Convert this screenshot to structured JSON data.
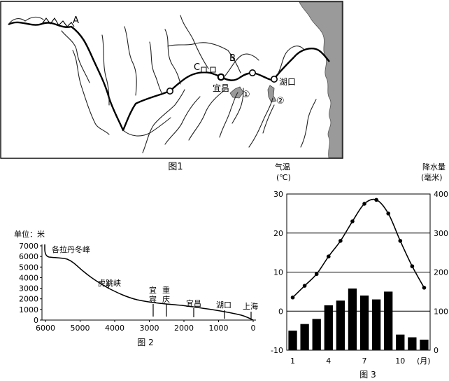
{
  "fig1": {
    "caption": "图1",
    "labels": {
      "A": "A",
      "B": "B",
      "C": "C",
      "yichang": "宜昌",
      "hukou": "湖口",
      "m1": "①",
      "m2": "②"
    }
  },
  "fig2": {
    "caption": "图 2",
    "unit": "单位：米",
    "y_ticks": [
      "7000",
      "6000",
      "5000",
      "4000",
      "3000",
      "2000",
      "1000",
      "0"
    ],
    "x_ticks": [
      "6000",
      "5000",
      "4000",
      "3000",
      "2000",
      "1000",
      "0"
    ],
    "places": {
      "geladandong": "各拉丹冬峰",
      "hutiaoxia": "虎跳峡",
      "yibin": [
        "宜",
        "宾"
      ],
      "chongqing": [
        "重",
        "庆"
      ],
      "yichang": "宜昌",
      "hukou": "湖口",
      "shanghai": "上海"
    }
  },
  "fig3": {
    "caption": "图 3",
    "left_title": "气温",
    "left_unit": "(℃)",
    "right_title": "降水量",
    "right_unit": "(毫米)",
    "left_ticks": [
      "30",
      "20",
      "10",
      "0",
      "-10"
    ],
    "right_ticks": [
      "400",
      "300",
      "200",
      "100",
      "0"
    ],
    "x_ticks": [
      "1",
      "4",
      "7",
      "10"
    ],
    "x_unit": "(月)"
  },
  "chart_data": {
    "type": "bar+line",
    "categories": [
      1,
      2,
      3,
      4,
      5,
      6,
      7,
      8,
      9,
      10,
      11,
      12
    ],
    "series": [
      {
        "name": "气温",
        "values": [
          3.5,
          6.5,
          9.5,
          14,
          18,
          23,
          27.5,
          28.5,
          25,
          18,
          11.5,
          6
        ]
      },
      {
        "name": "降水量",
        "values": [
          50,
          67,
          80,
          115,
          127,
          158,
          140,
          130,
          150,
          40,
          33,
          27
        ]
      }
    ],
    "ylim_left": [
      -10,
      30
    ],
    "ylim_right": [
      0,
      400
    ],
    "xlabel": "(月)",
    "ylabel_left": "气温(℃)",
    "ylabel_right": "降水量(毫米)"
  }
}
